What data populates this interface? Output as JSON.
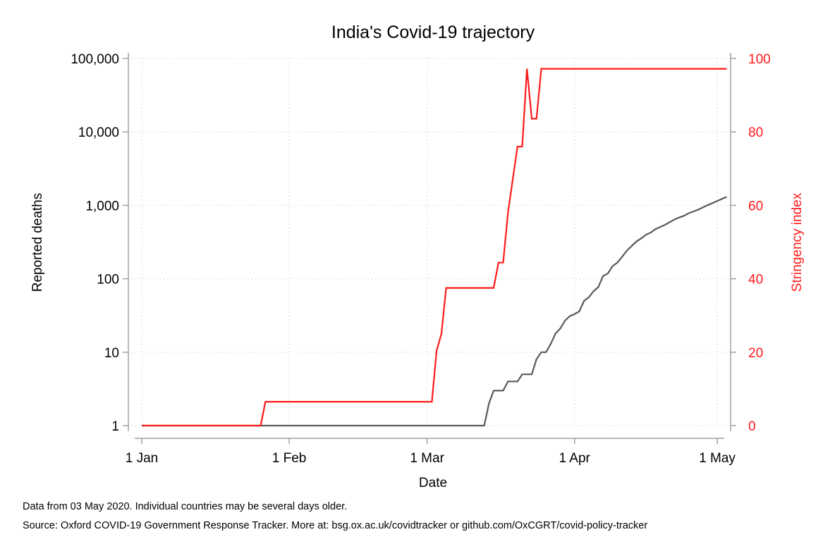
{
  "chart_data": {
    "type": "line",
    "title": "India's Covid-19 trajectory",
    "xlabel": "Date",
    "ylabel_left": "Reported deaths",
    "ylabel_right": "Stringency index",
    "x_range": [
      "2020-01-01",
      "2020-05-02"
    ],
    "x_ticks": [
      {
        "date": "2020-01-01",
        "label": "1 Jan"
      },
      {
        "date": "2020-02-01",
        "label": "1 Feb"
      },
      {
        "date": "2020-03-01",
        "label": "1 Mar"
      },
      {
        "date": "2020-04-01",
        "label": "1 Apr"
      },
      {
        "date": "2020-05-01",
        "label": "1 May"
      }
    ],
    "y_left": {
      "scale": "log",
      "range": [
        1,
        100000
      ],
      "ticks": [
        {
          "value": 1,
          "label": "1"
        },
        {
          "value": 10,
          "label": "10"
        },
        {
          "value": 100,
          "label": "100"
        },
        {
          "value": 1000,
          "label": "1,000"
        },
        {
          "value": 10000,
          "label": "10,000"
        },
        {
          "value": 100000,
          "label": "100,000"
        }
      ]
    },
    "y_right": {
      "scale": "linear",
      "range": [
        0,
        100
      ],
      "ticks": [
        {
          "value": 0,
          "label": "0"
        },
        {
          "value": 20,
          "label": "20"
        },
        {
          "value": 40,
          "label": "40"
        },
        {
          "value": 60,
          "label": "60"
        },
        {
          "value": 80,
          "label": "80"
        },
        {
          "value": 100,
          "label": "100"
        }
      ]
    },
    "grid": true,
    "colors": {
      "deaths": "#595959",
      "stringency": "#ff1a1a",
      "axis": "#a0a0a0",
      "grid": "#c0c0c0"
    },
    "series": [
      {
        "axis": "left",
        "points": [
          [
            "2020-01-01",
            1
          ],
          [
            "2020-03-13",
            1
          ],
          [
            "2020-03-14",
            2
          ],
          [
            "2020-03-15",
            3
          ],
          [
            "2020-03-17",
            3
          ],
          [
            "2020-03-18",
            4
          ],
          [
            "2020-03-20",
            4
          ],
          [
            "2020-03-21",
            5
          ],
          [
            "2020-03-23",
            5
          ],
          [
            "2020-03-24",
            8
          ],
          [
            "2020-03-25",
            10
          ],
          [
            "2020-03-26",
            10
          ],
          [
            "2020-03-27",
            13
          ],
          [
            "2020-03-28",
            18
          ],
          [
            "2020-03-29",
            21
          ],
          [
            "2020-03-30",
            27
          ],
          [
            "2020-03-31",
            31
          ],
          [
            "2020-04-01",
            33
          ],
          [
            "2020-04-02",
            36
          ],
          [
            "2020-04-03",
            50
          ],
          [
            "2020-04-04",
            56
          ],
          [
            "2020-04-05",
            68
          ],
          [
            "2020-04-06",
            77
          ],
          [
            "2020-04-07",
            109
          ],
          [
            "2020-04-08",
            118
          ],
          [
            "2020-04-09",
            149
          ],
          [
            "2020-04-10",
            166
          ],
          [
            "2020-04-11",
            199
          ],
          [
            "2020-04-12",
            242
          ],
          [
            "2020-04-13",
            279
          ],
          [
            "2020-04-14",
            321
          ],
          [
            "2020-04-15",
            355
          ],
          [
            "2020-04-16",
            396
          ],
          [
            "2020-04-17",
            425
          ],
          [
            "2020-04-18",
            474
          ],
          [
            "2020-04-19",
            507
          ],
          [
            "2020-04-20",
            542
          ],
          [
            "2020-04-21",
            590
          ],
          [
            "2020-04-22",
            641
          ],
          [
            "2020-04-23",
            683
          ],
          [
            "2020-04-24",
            721
          ],
          [
            "2020-04-25",
            781
          ],
          [
            "2020-04-26",
            825
          ],
          [
            "2020-04-27",
            873
          ],
          [
            "2020-04-28",
            937
          ],
          [
            "2020-04-29",
            1008
          ],
          [
            "2020-04-30",
            1074
          ],
          [
            "2020-05-01",
            1147
          ],
          [
            "2020-05-02",
            1223
          ],
          [
            "2020-05-03",
            1306
          ]
        ]
      },
      {
        "axis": "right",
        "points": [
          [
            "2020-01-01",
            0
          ],
          [
            "2020-01-26",
            0
          ],
          [
            "2020-01-27",
            6.5
          ],
          [
            "2020-03-02",
            6.5
          ],
          [
            "2020-03-03",
            20.4
          ],
          [
            "2020-03-04",
            25
          ],
          [
            "2020-03-05",
            37.5
          ],
          [
            "2020-03-15",
            37.5
          ],
          [
            "2020-03-16",
            44.4
          ],
          [
            "2020-03-17",
            44.4
          ],
          [
            "2020-03-18",
            58
          ],
          [
            "2020-03-19",
            67
          ],
          [
            "2020-03-20",
            76
          ],
          [
            "2020-03-21",
            76
          ],
          [
            "2020-03-22",
            97.2
          ],
          [
            "2020-03-23",
            83.6
          ],
          [
            "2020-03-24",
            83.6
          ],
          [
            "2020-03-25",
            97.2
          ],
          [
            "2020-05-03",
            97.2
          ]
        ]
      }
    ]
  },
  "notes": {
    "line1": "Data from 03 May 2020. Individual countries may be several days older.",
    "line2": "Source: Oxford COVID-19 Government Response Tracker. More at: bsg.ox.ac.uk/covidtracker or github.com/OxCGRT/covid-policy-tracker"
  }
}
